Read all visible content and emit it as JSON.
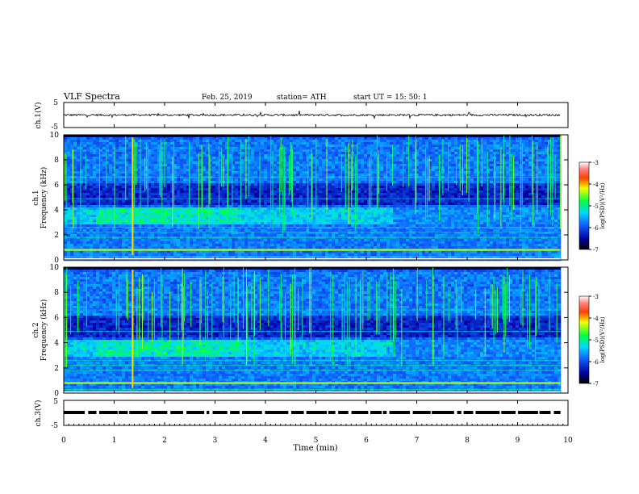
{
  "header": {
    "title": "VLF  Spectra",
    "date": "Feb. 25, 2019",
    "station": "station= ATH",
    "start": "start  UT  =    15: 50: 1"
  },
  "chart_data": [
    {
      "type": "line",
      "id": "ch1-waveform",
      "ylabel": "ch.1(V)",
      "ylim": [
        -5,
        5
      ],
      "yticks": [
        "5",
        "-5"
      ],
      "xlim": [
        0,
        10
      ],
      "baseline": 0,
      "description_values": {
        "typical_amplitude_V": 0.4,
        "spike_amplitude_V": 1.5
      }
    },
    {
      "type": "heatmap",
      "id": "ch1-spectrogram",
      "ylabel": "ch.1\nFrequency (kHz)",
      "ylabel_line1": "ch.1",
      "ylabel_line2": "Frequency (kHz)",
      "ylim": [
        0,
        10
      ],
      "yticks": [
        "0",
        "2",
        "4",
        "6",
        "8",
        "10"
      ],
      "xlim": [
        0,
        10
      ],
      "colorbar": {
        "label": "log(PSD)(V²/Hz)",
        "range": [
          -7,
          -3
        ],
        "ticks": [
          "-3",
          "-4",
          "-5",
          "-6",
          "-7"
        ]
      },
      "features": {
        "hiss_band_kHz": [
          3,
          4.3
        ],
        "hiss_peak_time_min": [
          0.6,
          3.5
        ],
        "intense_line_kHz": 0.8,
        "bright_sferic_time_min": 1.35,
        "data_end_min": 9.85
      }
    },
    {
      "type": "heatmap",
      "id": "ch2-spectrogram",
      "ylabel_line1": "ch.2",
      "ylabel_line2": "Frequency (kHz)",
      "ylim": [
        0,
        10
      ],
      "yticks": [
        "0",
        "2",
        "4",
        "6",
        "8",
        "10"
      ],
      "xlim": [
        0,
        10
      ],
      "colorbar": {
        "label": "log(PSD)(V²/Hz)",
        "range": [
          -7,
          -3
        ],
        "ticks": [
          "-3",
          "-4",
          "-5",
          "-6",
          "-7"
        ]
      },
      "features": {
        "hiss_band_kHz": [
          3,
          4.3
        ],
        "hiss_peak_time_min": [
          0.6,
          3.5
        ],
        "intense_line_kHz": 0.8,
        "bright_sferic_time_min": 1.35,
        "data_end_min": 9.85
      }
    },
    {
      "type": "line",
      "id": "ch3-waveform",
      "ylabel": "ch.3(V)",
      "ylim": [
        -5,
        5
      ],
      "yticks": [
        "5",
        "-5"
      ],
      "xlim": [
        0,
        10
      ],
      "baseline": 0,
      "description_values": {
        "pattern": "dashed square wave"
      }
    }
  ],
  "xaxis": {
    "label": "Time  (min)",
    "ticks": [
      "0",
      "1",
      "2",
      "3",
      "4",
      "5",
      "6",
      "7",
      "8",
      "9",
      "10"
    ]
  },
  "colors": {
    "background": "#ffffff",
    "spectro_low": "#000020",
    "spectro_mid": "#1a3cff",
    "spectro_high": "#00ff66",
    "spectro_peak": "#ffe000"
  }
}
